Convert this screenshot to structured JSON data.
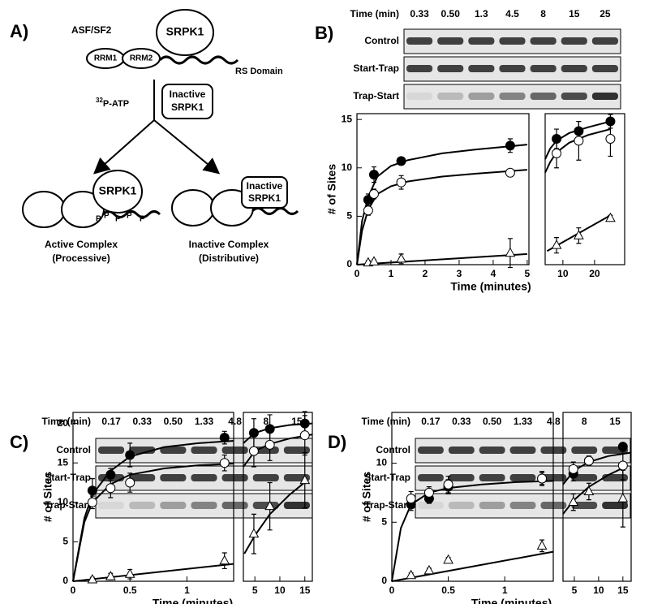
{
  "diagram": {
    "label": "A)",
    "substrate": "ASF/SF2",
    "kinase": "SRPK1",
    "rrm1": "RRM1",
    "rrm2": "RRM2",
    "rs_domain": "RS Domain",
    "atp": {
      "superscript": "32",
      "text": "P-ATP"
    },
    "inactive_kinase": [
      "Inactive",
      "SRPK1"
    ],
    "active_kinase": "SRPK1",
    "phosphates": [
      "P",
      "P",
      "P",
      "P",
      "P"
    ],
    "inactive_kinase_bound": [
      "Inactive",
      "SRPK1"
    ],
    "active_complex": [
      "Active Complex",
      "(Processive)"
    ],
    "inactive_complex": [
      "Inactive Complex",
      "(Distributive)"
    ]
  },
  "panels": [
    {
      "label": "B)",
      "time_label": "Time (min)",
      "times": [
        "0.33",
        "0.50",
        "1.3",
        "4.5",
        "8",
        "15",
        "25"
      ],
      "rows": [
        "Control",
        "Start-Trap",
        "Trap-Start"
      ]
    },
    {
      "label": "C)",
      "time_label": "Time (min)",
      "times": [
        "0.17",
        "0.33",
        "0.50",
        "1.33",
        "4.8",
        "8",
        "15"
      ],
      "rows": [
        "Control",
        "Start-Trap",
        "Trap-Start"
      ]
    },
    {
      "label": "D)",
      "time_label": "Time (min)",
      "times": [
        "0.17",
        "0.33",
        "0.50",
        "1.33",
        "4.8",
        "8",
        "15"
      ],
      "rows": [
        "Control",
        "Start-Trap",
        "Trap-Start"
      ]
    }
  ],
  "chart_data": [
    {
      "type": "scatter",
      "x_label": "Time (minutes)",
      "y_label": "# of Sites",
      "xlim": [
        0,
        5.05
      ],
      "xticks": [
        0,
        1,
        2,
        3,
        4,
        5
      ],
      "ylim": [
        0,
        15.6
      ],
      "yticks": [
        0,
        5,
        10,
        15
      ],
      "series": [
        {
          "marker": "filled-circle",
          "x": [
            0.33,
            0.5,
            1.3,
            4.5
          ],
          "values": [
            6.7,
            9.3,
            10.7,
            12.3
          ],
          "errors": [
            0.6,
            0.8,
            0.3,
            0.7
          ]
        },
        {
          "marker": "open-circle",
          "x": [
            0.33,
            0.5,
            1.3,
            4.5
          ],
          "values": [
            5.6,
            7.3,
            8.5,
            9.5
          ],
          "errors": [
            0.5,
            0.5,
            0.7,
            0.3
          ]
        },
        {
          "marker": "open-triangle",
          "x": [
            0.33,
            0.5,
            1.3,
            4.5
          ],
          "values": [
            0.2,
            0.3,
            0.6,
            1.2
          ],
          "errors": [
            0.2,
            0.2,
            0.5,
            1.5
          ]
        }
      ],
      "curves": [
        {
          "x": [
            0,
            0.15,
            0.33,
            0.6,
            1,
            1.5,
            2.5,
            3.5,
            5
          ],
          "values": [
            0,
            4.5,
            7,
            9.1,
            10.2,
            10.8,
            11.5,
            11.9,
            12.4
          ]
        },
        {
          "x": [
            0,
            0.15,
            0.33,
            0.6,
            1,
            1.5,
            2.5,
            3.5,
            5
          ],
          "values": [
            0,
            3.5,
            5.7,
            7.3,
            8.1,
            8.6,
            9.1,
            9.4,
            9.8
          ]
        },
        {
          "x": [
            0,
            5
          ],
          "values": [
            0,
            1.1
          ]
        }
      ]
    },
    {
      "type": "scatter",
      "xlim": [
        4.4,
        29.5
      ],
      "xticks": [
        10,
        20
      ],
      "ylim": [
        0,
        15.6
      ],
      "series": [
        {
          "marker": "filled-circle",
          "x": [
            8,
            15,
            25
          ],
          "values": [
            13,
            13.8,
            14.8
          ],
          "errors": [
            1,
            1,
            0.7
          ]
        },
        {
          "marker": "open-circle",
          "x": [
            8,
            15,
            25
          ],
          "values": [
            11.5,
            12.8,
            13
          ],
          "errors": [
            1.5,
            2,
            1.8
          ]
        },
        {
          "marker": "open-triangle",
          "x": [
            8,
            15,
            25
          ],
          "values": [
            2,
            3,
            4.8
          ],
          "errors": [
            0.8,
            0.8,
            0.3
          ]
        }
      ],
      "curves": [
        {
          "x": [
            4.4,
            6,
            8,
            12,
            18,
            25
          ],
          "values": [
            10.9,
            12,
            12.8,
            13.6,
            14.2,
            14.8
          ]
        },
        {
          "x": [
            4.4,
            6,
            8,
            12,
            18,
            25
          ],
          "values": [
            9.5,
            10.6,
            11.6,
            12.6,
            13.4,
            14
          ]
        },
        {
          "x": [
            5,
            25
          ],
          "values": [
            1.4,
            5.1
          ]
        }
      ]
    },
    {
      "type": "scatter",
      "x_label": "Time (minutes)",
      "y_label": "# of Sites",
      "xlim": [
        0,
        1.41
      ],
      "xticks": [
        0,
        0.5,
        1
      ],
      "ylim": [
        0,
        21.4
      ],
      "yticks": [
        0,
        5,
        10,
        15,
        20
      ],
      "series": [
        {
          "marker": "filled-circle",
          "x": [
            0.17,
            0.33,
            0.5,
            1.33
          ],
          "values": [
            11.5,
            13.5,
            16,
            18.2
          ],
          "errors": [
            1.5,
            0.8,
            1.5,
            0.8
          ]
        },
        {
          "marker": "open-circle",
          "x": [
            0.17,
            0.33,
            0.5,
            1.33
          ],
          "values": [
            10,
            11.8,
            12.5,
            15
          ],
          "errors": [
            0.8,
            1.2,
            1.2,
            1
          ]
        },
        {
          "marker": "open-triangle",
          "x": [
            0.17,
            0.33,
            0.5,
            1.33
          ],
          "values": [
            0.2,
            0.6,
            0.9,
            2.6
          ],
          "errors": [
            0.3,
            0.4,
            0.6,
            1
          ]
        }
      ],
      "curves": [
        {
          "x": [
            0,
            0.1,
            0.17,
            0.33,
            0.5,
            0.8,
            1.1,
            1.41
          ],
          "values": [
            0,
            8,
            11,
            14,
            15.8,
            17,
            17.5,
            17.8
          ]
        },
        {
          "x": [
            0,
            0.1,
            0.17,
            0.33,
            0.5,
            0.8,
            1.1,
            1.41
          ],
          "values": [
            0,
            7.5,
            10,
            12.3,
            13.5,
            14.3,
            14.7,
            14.9
          ]
        },
        {
          "x": [
            0,
            1.41
          ],
          "values": [
            0,
            2.2
          ]
        }
      ]
    },
    {
      "type": "scatter",
      "xlim": [
        2.7,
        16.5
      ],
      "xticks": [
        5,
        10,
        15
      ],
      "ylim": [
        0,
        21.4
      ],
      "series": [
        {
          "marker": "filled-circle",
          "x": [
            4.8,
            8,
            15
          ],
          "values": [
            18.8,
            19.3,
            20
          ],
          "errors": [
            1.8,
            1.8,
            1.5
          ]
        },
        {
          "marker": "open-circle",
          "x": [
            4.8,
            8,
            15
          ],
          "values": [
            16.5,
            17.3,
            18.5
          ],
          "errors": [
            2,
            2,
            2.5
          ]
        },
        {
          "marker": "open-triangle",
          "x": [
            4.8,
            8,
            15
          ],
          "values": [
            6,
            9.5,
            12.8
          ],
          "errors": [
            2.5,
            3,
            3.5
          ]
        }
      ],
      "curves": [
        {
          "x": [
            2.7,
            5,
            8,
            12,
            16.5
          ],
          "values": [
            17.5,
            18.8,
            19.4,
            19.8,
            20
          ]
        },
        {
          "x": [
            2.7,
            5,
            8,
            12,
            16.5
          ],
          "values": [
            14.5,
            16.5,
            17.4,
            18.1,
            18.6
          ]
        },
        {
          "x": [
            2.9,
            5,
            8,
            12,
            15.5
          ],
          "values": [
            3.5,
            5.8,
            8.5,
            11,
            12.8
          ]
        }
      ]
    },
    {
      "type": "scatter",
      "x_label": "Time (minutes)",
      "y_label": "# of Sites",
      "xlim": [
        0,
        1.43
      ],
      "xticks": [
        0,
        0.5,
        1
      ],
      "ylim": [
        0,
        14.3
      ],
      "yticks": [
        0,
        5,
        10
      ],
      "series": [
        {
          "marker": "filled-circle",
          "x": [
            0.17,
            0.33,
            0.5,
            1.33
          ],
          "values": [
            6.5,
            7,
            8,
            8.7
          ],
          "errors": [
            0.5,
            0.4,
            0.6,
            0.5
          ]
        },
        {
          "marker": "open-circle",
          "x": [
            0.17,
            0.33,
            0.5,
            1.33
          ],
          "values": [
            7,
            7.5,
            8.2,
            8.7
          ],
          "errors": [
            0.6,
            0.5,
            0.7,
            0.6
          ]
        },
        {
          "marker": "open-triangle",
          "x": [
            0.17,
            0.33,
            0.5,
            1.33
          ],
          "values": [
            0.5,
            0.9,
            1.8,
            3
          ],
          "errors": [
            0.2,
            0.2,
            0.2,
            0.5
          ]
        }
      ],
      "curves": [
        {
          "x": [
            0,
            0.08,
            0.17,
            0.33,
            0.5,
            0.8,
            1.1,
            1.43
          ],
          "values": [
            0,
            4.5,
            6.5,
            7.5,
            7.9,
            8.2,
            8.4,
            8.5
          ]
        },
        {
          "x": [
            0,
            1.43
          ],
          "values": [
            0,
            2.5
          ]
        }
      ]
    },
    {
      "type": "scatter",
      "xlim": [
        2.67,
        16.7
      ],
      "xticks": [
        5,
        10,
        15
      ],
      "ylim": [
        0,
        14.3
      ],
      "series": [
        {
          "marker": "filled-circle",
          "x": [
            4.8,
            8,
            15
          ],
          "values": [
            9.1,
            10.2,
            11.4
          ],
          "errors": [
            0.6,
            0.4,
            0.3
          ]
        },
        {
          "marker": "open-circle",
          "x": [
            4.8,
            8,
            15
          ],
          "values": [
            9.5,
            10.2,
            9.8
          ],
          "errors": [
            0.6,
            0.4,
            1.2
          ]
        },
        {
          "marker": "open-triangle",
          "x": [
            4.8,
            8,
            15
          ],
          "values": [
            6.7,
            7.6,
            7
          ],
          "errors": [
            0.7,
            0.7,
            2.4
          ]
        }
      ],
      "curves": [
        {
          "x": [
            2.67,
            5,
            8,
            12,
            16.7
          ],
          "values": [
            8.2,
            9.4,
            10.1,
            10.6,
            10.9
          ]
        },
        {
          "x": [
            2.67,
            5,
            8,
            12,
            15
          ],
          "values": [
            5.7,
            6.9,
            8,
            9,
            9.6
          ]
        }
      ]
    }
  ]
}
